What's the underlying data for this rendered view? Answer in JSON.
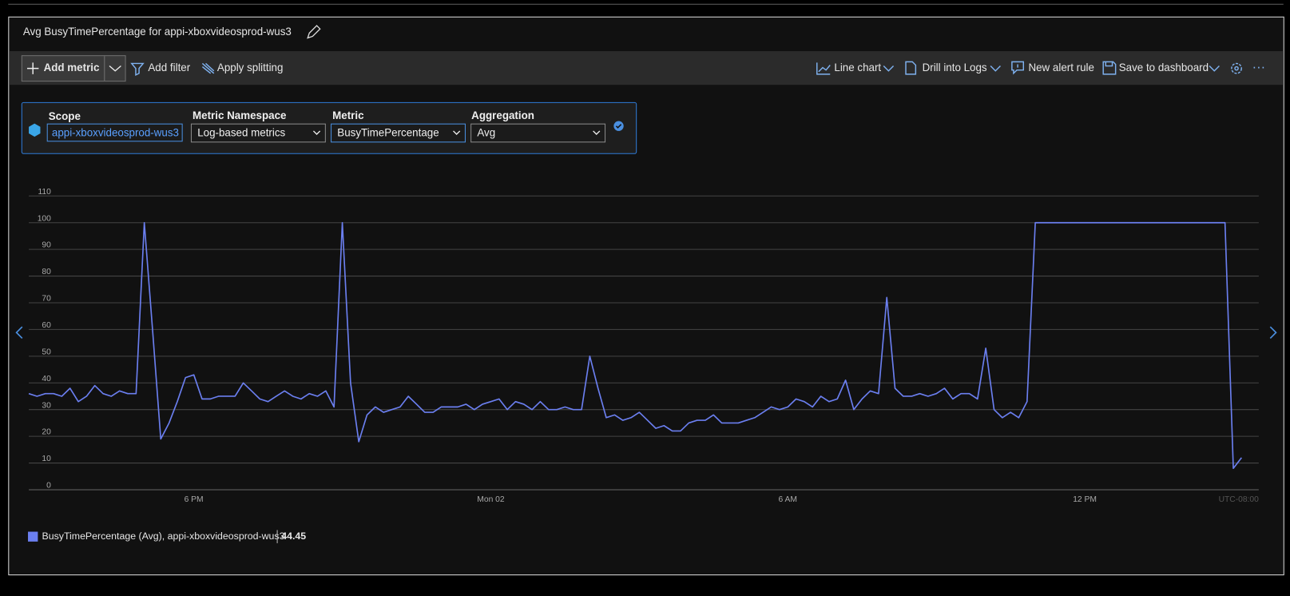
{
  "header": {
    "title": "Avg BusyTimePercentage for appi-xboxvideosprod-wus3"
  },
  "toolbar": {
    "left": [
      "Add metric",
      "Add filter",
      "Apply splitting"
    ],
    "right": [
      "Line chart",
      "Drill into Logs",
      "New alert rule",
      "Save to dashboard"
    ]
  },
  "metric_selector": [
    {
      "label": "Scope",
      "value": "appi-xboxvideosprod-wus3"
    },
    {
      "label": "Metric Namespace",
      "value": "Log-based metrics"
    },
    {
      "label": "Metric",
      "value": "BusyTimePercentage"
    },
    {
      "label": "Aggregation",
      "value": "Avg"
    }
  ],
  "chart_data": {
    "type": "line",
    "timezone": "UTC-08:00",
    "categories": [
      null,
      null,
      null,
      null,
      null,
      null,
      null,
      null,
      null,
      null,
      null,
      null,
      null,
      null,
      null,
      null,
      null,
      null,
      null,
      null,
      "6 PM",
      null,
      null,
      null,
      null,
      null,
      null,
      null,
      null,
      null,
      null,
      null,
      null,
      null,
      null,
      null,
      null,
      null,
      null,
      null,
      null,
      null,
      null,
      null,
      null,
      null,
      null,
      null,
      null,
      null,
      null,
      null,
      null,
      null,
      null,
      null,
      "Mon 02",
      null,
      null,
      null,
      null,
      null,
      null,
      null,
      null,
      null,
      null,
      null,
      null,
      null,
      null,
      null,
      null,
      null,
      null,
      null,
      null,
      null,
      null,
      null,
      null,
      null,
      null,
      null,
      null,
      null,
      null,
      null,
      null,
      null,
      null,
      null,
      "6 AM",
      null,
      null,
      null,
      null,
      null,
      null,
      null,
      null,
      null,
      null,
      null,
      null,
      null,
      null,
      null,
      null,
      null,
      null,
      null,
      null,
      null,
      null,
      null,
      null,
      null,
      null,
      null,
      null,
      null,
      null,
      null,
      null,
      null,
      null,
      null,
      "12 PM",
      null,
      null,
      null,
      null,
      null,
      null,
      null,
      null,
      null,
      null,
      null,
      null,
      null,
      null,
      null,
      null,
      null,
      null,
      null
    ],
    "series": [
      {
        "name": "BusyTimePercentage (Avg), appi-xboxvideosprod-wus3",
        "color": "#6b7ff0",
        "legend_value": 44.45,
        "values": [
          36,
          35,
          36,
          36,
          35,
          38,
          33,
          35,
          39,
          36,
          35,
          37,
          36,
          36,
          100,
          60,
          19,
          25,
          33,
          42,
          43,
          34,
          34,
          35,
          35,
          35,
          40,
          37,
          34,
          33,
          35,
          37,
          35,
          34,
          36,
          35,
          37,
          31,
          100,
          40,
          18,
          28,
          31,
          29,
          30,
          31,
          35,
          32,
          29,
          29,
          31,
          31,
          31,
          32,
          30,
          32,
          33,
          34,
          30,
          33,
          32,
          30,
          33,
          30,
          30,
          31,
          30,
          30,
          50,
          38,
          27,
          28,
          26,
          27,
          29,
          26,
          23,
          24,
          22,
          22,
          25,
          26,
          26,
          28,
          25,
          25,
          25,
          26,
          27,
          29,
          31,
          30,
          31,
          34,
          33,
          31,
          35,
          33,
          34,
          41,
          30,
          34,
          37,
          36,
          72,
          38,
          35,
          35,
          36,
          35,
          36,
          38,
          34,
          36,
          36,
          34,
          53,
          30,
          27,
          29,
          27,
          33,
          100,
          100,
          100,
          100,
          100,
          100,
          100,
          100,
          100,
          100,
          100,
          100,
          100,
          100,
          100,
          100,
          100,
          100,
          100,
          100,
          100,
          100,
          100,
          100,
          8,
          12
        ]
      }
    ],
    "ylim": [
      0,
      110
    ],
    "yticks": [
      0,
      10,
      20,
      30,
      40,
      50,
      60,
      70,
      80,
      90,
      100,
      110
    ],
    "grid": true
  }
}
